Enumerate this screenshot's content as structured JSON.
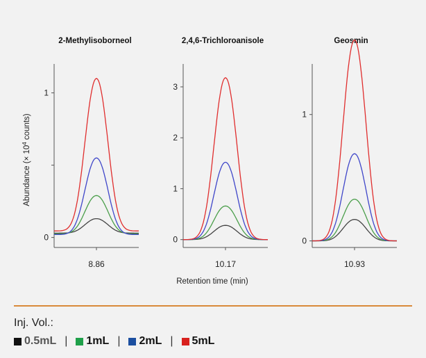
{
  "chart_data": {
    "type": "line",
    "y_axis_label_main": "Abundance (× 10",
    "y_axis_label_sup": "4",
    "y_axis_label_end": " counts)",
    "x_axis_label": "Retention time (min)",
    "panels": [
      {
        "title": "2-Methylisoborneol",
        "peak_center": 8.86,
        "x_tick": "8.86",
        "ylim": [
          -0.05,
          1.2
        ],
        "y_ticks": [
          {
            "value": 0,
            "label": "0"
          },
          {
            "value": 0.5,
            "label": ""
          },
          {
            "value": 1,
            "label": "1"
          }
        ],
        "sigma": 0.28,
        "series": [
          {
            "volume": "0.5mL",
            "baseline": 0.03,
            "peak": 0.13
          },
          {
            "volume": "1mL",
            "baseline": 0.025,
            "peak": 0.29
          },
          {
            "volume": "2mL",
            "baseline": 0.02,
            "peak": 0.55
          },
          {
            "volume": "5mL",
            "baseline": 0.045,
            "peak": 1.1
          }
        ]
      },
      {
        "title": "2,4,6-Trichloroanisole",
        "peak_center": 10.17,
        "x_tick": "10.17",
        "ylim": [
          -0.1,
          3.45
        ],
        "y_ticks": [
          {
            "value": 0,
            "label": "0"
          },
          {
            "value": 1,
            "label": "1"
          },
          {
            "value": 2,
            "label": "2"
          },
          {
            "value": 3,
            "label": "3"
          }
        ],
        "sigma": 0.28,
        "series": [
          {
            "volume": "0.5mL",
            "baseline": 0.0,
            "peak": 0.28
          },
          {
            "volume": "1mL",
            "baseline": 0.0,
            "peak": 0.66
          },
          {
            "volume": "2mL",
            "baseline": 0.0,
            "peak": 1.52
          },
          {
            "volume": "5mL",
            "baseline": 0.0,
            "peak": 3.18
          }
        ]
      },
      {
        "title": "Geosmin",
        "peak_center": 10.93,
        "x_tick": "10.93",
        "ylim": [
          -0.03,
          1.4
        ],
        "y_ticks": [
          {
            "value": 0,
            "label": "0"
          },
          {
            "value": 1,
            "label": "1"
          }
        ],
        "sigma": 0.28,
        "series": [
          {
            "volume": "0.5mL",
            "baseline": 0.0,
            "peak": 0.17
          },
          {
            "volume": "1mL",
            "baseline": 0.0,
            "peak": 0.33
          },
          {
            "volume": "2mL",
            "baseline": 0.0,
            "peak": 0.69
          },
          {
            "volume": "5mL",
            "baseline": 0.0,
            "peak": 1.59
          }
        ]
      }
    ]
  },
  "series_colors": {
    "0.5mL": "#444444",
    "1mL": "#4a9e4a",
    "2mL": "#3f46c9",
    "5mL": "#e02d2d"
  },
  "legend": {
    "title": "Inj. Vol.:",
    "separator": "|",
    "items": [
      {
        "label": "0.5mL",
        "swatch_color": "#111111",
        "text_color": "#555555"
      },
      {
        "label": "1mL",
        "swatch_color": "#1fa04a",
        "text_color": "#111111"
      },
      {
        "label": "2mL",
        "swatch_color": "#1c4fa0",
        "text_color": "#111111"
      },
      {
        "label": "5mL",
        "swatch_color": "#d8211e",
        "text_color": "#111111"
      }
    ]
  }
}
